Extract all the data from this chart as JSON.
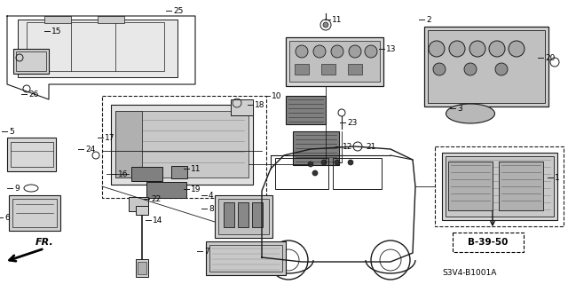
{
  "bg_color": "#ffffff",
  "line_color": "#1a1a1a",
  "gray1": "#c0c0c0",
  "gray2": "#909090",
  "gray3": "#d8d8d8",
  "label_b3950": "B-39-50",
  "label_s3v4": "S3V4-B1001A",
  "label_fr": "FR."
}
